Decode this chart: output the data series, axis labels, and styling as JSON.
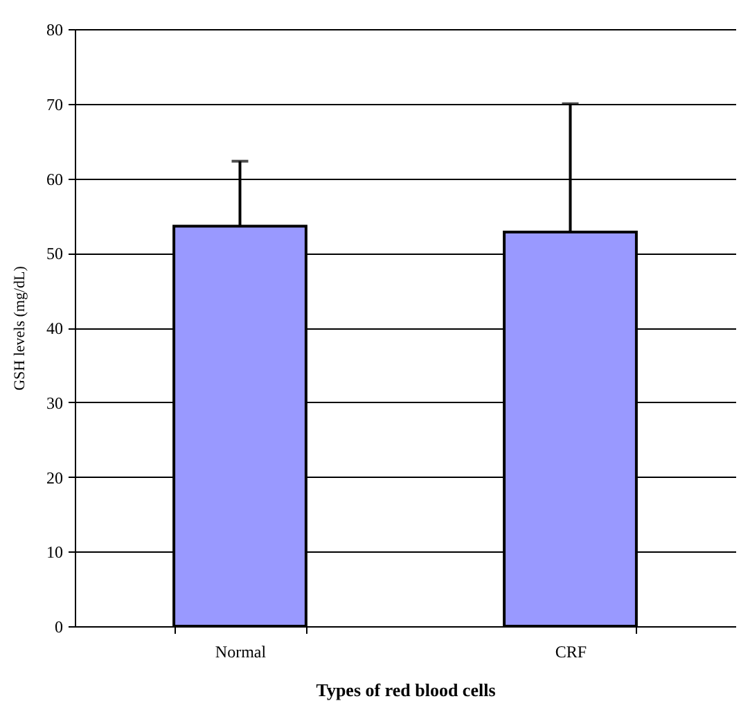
{
  "chart_data": {
    "type": "bar",
    "xlabel": "Types of red blood cells",
    "ylabel": "GSH levels (mg/dL)",
    "categories": [
      "Normal",
      "CRF"
    ],
    "values": [
      53.6,
      52.8
    ],
    "errors": [
      [
        53.6,
        62.3
      ],
      [
        52.8,
        70
      ]
    ],
    "color": "#9999ff",
    "ylim": [
      0,
      80
    ],
    "yticks": [
      0,
      10,
      20,
      30,
      40,
      50,
      60,
      70,
      80
    ],
    "grid": "y"
  }
}
